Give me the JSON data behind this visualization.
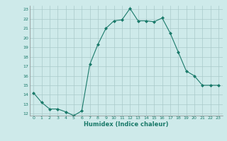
{
  "x": [
    0,
    1,
    2,
    3,
    4,
    5,
    6,
    7,
    8,
    9,
    10,
    11,
    12,
    13,
    14,
    15,
    16,
    17,
    18,
    19,
    20,
    21,
    22,
    23
  ],
  "y": [
    14.2,
    13.2,
    12.5,
    12.5,
    12.2,
    11.8,
    12.3,
    17.2,
    19.3,
    21.0,
    21.8,
    21.9,
    23.1,
    21.8,
    21.8,
    21.7,
    22.1,
    20.5,
    18.5,
    16.5,
    16.0,
    15.0,
    15.0,
    15.0
  ],
  "xlabel": "Humidex (Indice chaleur)",
  "ylim_min": 11.8,
  "ylim_max": 23.4,
  "xlim_min": -0.5,
  "xlim_max": 23.5,
  "yticks": [
    12,
    13,
    14,
    15,
    16,
    17,
    18,
    19,
    20,
    21,
    22,
    23
  ],
  "xticks": [
    0,
    1,
    2,
    3,
    4,
    5,
    6,
    7,
    8,
    9,
    10,
    11,
    12,
    13,
    14,
    15,
    16,
    17,
    18,
    19,
    20,
    21,
    22,
    23
  ],
  "line_color": "#1a7a6a",
  "marker_color": "#1a7a6a",
  "bg_color": "#ceeaea",
  "grid_color": "#aacaca",
  "xlabel_color": "#1a7a6a"
}
